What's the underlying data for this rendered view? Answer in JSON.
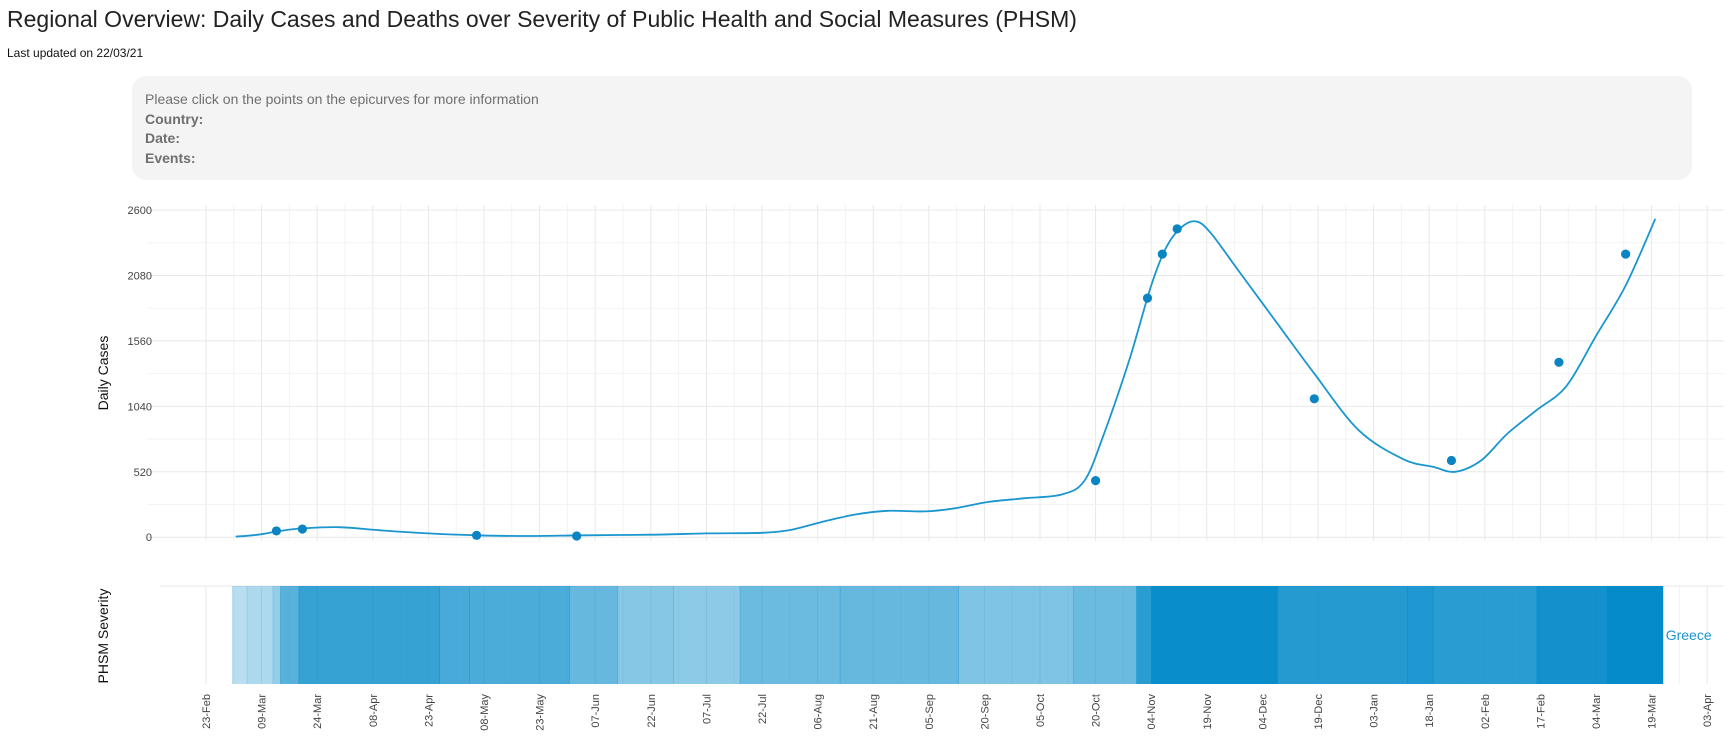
{
  "header": {
    "title": "Regional Overview: Daily Cases and Deaths over Severity of Public Health and Social Measures (PHSM)",
    "updated": "Last updated on 22/03/21"
  },
  "info": {
    "prompt": "Please click on the points on the epicurves for more information",
    "country_label": "Country:",
    "date_label": "Date:",
    "events_label": "Events:"
  },
  "colors": {
    "line": "#1a96cf",
    "point": "#0b84c4",
    "severity": "#0089c9",
    "label": "#1a96cf"
  },
  "chart_data": [
    {
      "type": "line",
      "ylabel": "Daily Cases",
      "ylim": [
        -30,
        2640
      ],
      "yticks": [
        0,
        520,
        1040,
        1560,
        2080,
        2600
      ],
      "series": [
        {
          "x": [
            "2020-03-02",
            "2020-03-08",
            "2020-03-14",
            "2020-03-20",
            "2020-03-30",
            "2020-04-10",
            "2020-04-23",
            "2020-05-06",
            "2020-05-20",
            "2020-06-04",
            "2020-06-22",
            "2020-07-07",
            "2020-07-22",
            "2020-07-30",
            "2020-08-07",
            "2020-08-16",
            "2020-08-25",
            "2020-09-04",
            "2020-09-12",
            "2020-09-21",
            "2020-10-01",
            "2020-10-11",
            "2020-10-17",
            "2020-10-22",
            "2020-10-29",
            "2020-11-04",
            "2020-11-08",
            "2020-11-12",
            "2020-11-16",
            "2020-11-20",
            "2020-11-28",
            "2020-12-08",
            "2020-12-18",
            "2020-12-30",
            "2021-01-11",
            "2021-01-19",
            "2021-01-25",
            "2021-02-01",
            "2021-02-08",
            "2021-02-16",
            "2021-02-24",
            "2021-03-04",
            "2021-03-12",
            "2021-03-20"
          ],
          "y": [
            5,
            20,
            50,
            70,
            80,
            55,
            30,
            15,
            10,
            15,
            20,
            30,
            35,
            60,
            120,
            180,
            210,
            205,
            230,
            280,
            310,
            340,
            450,
            800,
            1400,
            2000,
            2300,
            2460,
            2510,
            2420,
            2100,
            1700,
            1300,
            850,
            620,
            560,
            520,
            610,
            820,
            1010,
            1200,
            1600,
            2000,
            2530
          ]
        }
      ],
      "points": {
        "x": [
          "2020-03-13",
          "2020-03-20",
          "2020-05-06",
          "2020-06-02",
          "2020-10-20",
          "2020-11-03",
          "2020-11-07",
          "2020-11-11",
          "2020-12-18",
          "2021-01-24",
          "2021-02-22",
          "2021-03-12"
        ],
        "y": [
          50,
          65,
          15,
          10,
          450,
          1900,
          2250,
          2450,
          1100,
          610,
          1390,
          2250
        ]
      }
    },
    {
      "type": "heatmap",
      "ylabel": "PHSM Severity",
      "row_label": "Greece",
      "start": "2020-03-01",
      "end": "2021-03-22",
      "segments": [
        {
          "start": "2020-03-01",
          "value": 0.28
        },
        {
          "start": "2020-03-05",
          "value": 0.32
        },
        {
          "start": "2020-03-12",
          "value": 0.42
        },
        {
          "start": "2020-03-14",
          "value": 0.66
        },
        {
          "start": "2020-03-19",
          "value": 0.79
        },
        {
          "start": "2020-04-26",
          "value": 0.72
        },
        {
          "start": "2020-05-04",
          "value": 0.7
        },
        {
          "start": "2020-05-31",
          "value": 0.6
        },
        {
          "start": "2020-06-13",
          "value": 0.47
        },
        {
          "start": "2020-06-28",
          "value": 0.45
        },
        {
          "start": "2020-07-16",
          "value": 0.58
        },
        {
          "start": "2020-08-12",
          "value": 0.6
        },
        {
          "start": "2020-09-13",
          "value": 0.5
        },
        {
          "start": "2020-10-14",
          "value": 0.58
        },
        {
          "start": "2020-10-31",
          "value": 0.84
        },
        {
          "start": "2020-11-04",
          "value": 0.96
        },
        {
          "start": "2020-12-08",
          "value": 0.86
        },
        {
          "start": "2021-01-12",
          "value": 0.88
        },
        {
          "start": "2021-01-19",
          "value": 0.84
        },
        {
          "start": "2021-02-16",
          "value": 0.93
        },
        {
          "start": "2021-03-07",
          "value": 0.98
        }
      ],
      "x_tick_labels": [
        "23-Feb",
        "09-Mar",
        "24-Mar",
        "08-Apr",
        "23-Apr",
        "08-May",
        "23-May",
        "07-Jun",
        "22-Jun",
        "07-Jul",
        "22-Jul",
        "06-Aug",
        "21-Aug",
        "05-Sep",
        "20-Sep",
        "05-Oct",
        "20-Oct",
        "04-Nov",
        "19-Nov",
        "04-Dec",
        "19-Dec",
        "03-Jan",
        "18-Jan",
        "02-Feb",
        "17-Feb",
        "04-Mar",
        "19-Mar",
        "03-Apr"
      ]
    }
  ]
}
